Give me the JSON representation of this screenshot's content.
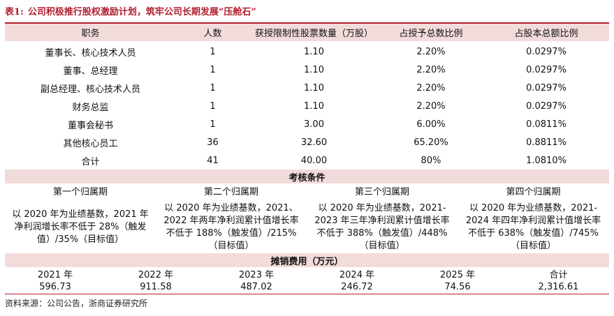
{
  "title": {
    "number": "表1:",
    "text": "公司积极推行股权激励计划，筑牢公司长期发展“压舱石”"
  },
  "header": [
    "职务",
    "人数",
    "获授限制性股票数量（万股）",
    "占授予总数比例",
    "占股本总额比例"
  ],
  "rows": [
    [
      "董事长、核心技术人员",
      "1",
      "1.10",
      "2.20%",
      "0.0297%"
    ],
    [
      "董事、总经理",
      "1",
      "1.10",
      "2.20%",
      "0.0297%"
    ],
    [
      "副总经理、核心技术人员",
      "1",
      "1.10",
      "2.20%",
      "0.0297%"
    ],
    [
      "财务总监",
      "1",
      "1.10",
      "2.20%",
      "0.0297%"
    ],
    [
      "董事会秘书",
      "1",
      "3.00",
      "6.00%",
      "0.0811%"
    ],
    [
      "其他核心员工",
      "36",
      "32.60",
      "65.20%",
      "0.8811%"
    ],
    [
      "合计",
      "41",
      "40.00",
      "80%",
      "1.0810%"
    ]
  ],
  "conditions": {
    "title": "考核条件",
    "periods": [
      "第一个归属期",
      "第二个归属期",
      "第三个归属期",
      "第四个归属期"
    ],
    "texts": [
      "以 2020 年为业绩基数，2021 年净利润增长率不低于 28%（触发值）/35%（目标值）",
      "以 2020 年为业绩基数，2021、2022 年两年净利润累计值增长率不低于 188%（触发值）/215%（目标值）",
      "以 2020 年为业绩基数，2021-2023 年三年净利润累计值增长率不低于 388%（触发值）/448%（目标值）",
      "以 2020 年为业绩基数，2021-2024 年四年净利润累计值增长率不低于 638%（触发值）/745%（目标值）"
    ]
  },
  "expense": {
    "title": "摊销费用（万元）",
    "years": [
      "2021 年",
      "2022 年",
      "2023 年",
      "2024 年",
      "2025 年",
      "合计"
    ],
    "values": [
      "596.73",
      "911.58",
      "487.02",
      "246.72",
      "74.56",
      "2,316.61"
    ]
  },
  "source": "资料来源：公司公告，浙商证券研究所"
}
